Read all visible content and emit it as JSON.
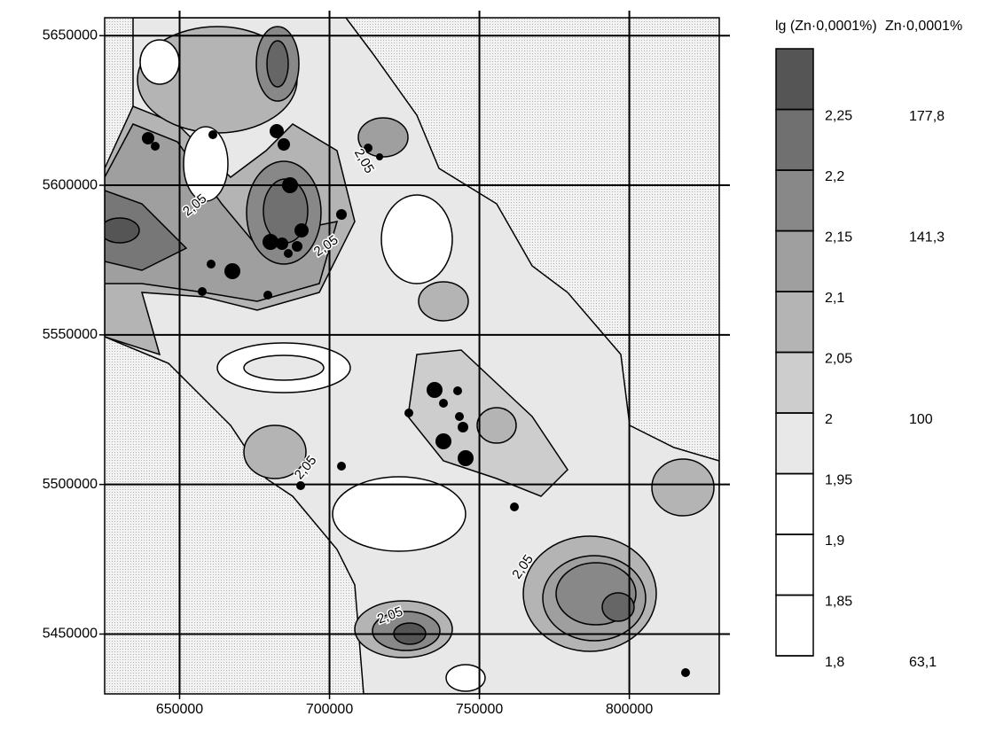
{
  "chart_data": {
    "type": "contour",
    "xlim": [
      625000,
      830000
    ],
    "ylim": [
      5430000,
      5656000
    ],
    "xticks": [
      650000,
      700000,
      750000,
      800000
    ],
    "yticks": [
      5450000,
      5500000,
      5550000,
      5600000,
      5650000
    ],
    "grid": true,
    "contour_labels": [
      "2,05",
      "2,05",
      "2,05",
      "2,05",
      "2,05",
      "2,05"
    ],
    "legend_title": "lg (Zn·0,0001%)",
    "colorbar_lim": [
      1.8,
      2.3
    ],
    "levels": [
      {
        "value": 1.8,
        "label": "1,8"
      },
      {
        "value": 1.85,
        "label": "1,85"
      },
      {
        "value": 1.9,
        "label": "1,9"
      },
      {
        "value": 1.95,
        "label": "1,95"
      },
      {
        "value": 2,
        "label": "2"
      },
      {
        "value": 2.05,
        "label": "2,05"
      },
      {
        "value": 2.1,
        "label": "2,1"
      },
      {
        "value": 2.15,
        "label": "2,15"
      },
      {
        "value": 2.2,
        "label": "2,2"
      },
      {
        "value": 2.25,
        "label": "2,25"
      }
    ],
    "colors": [
      "#ffffff",
      "#ffffff",
      "#ffffff",
      "#e8e8e8",
      "#cdcdcd",
      "#b4b4b4",
      "#9f9f9f",
      "#888888",
      "#707070",
      "#555555"
    ],
    "secondary_title": "Zn·0,0001%",
    "secondary_ticks": [
      {
        "value": 177.8,
        "label": "177,8"
      },
      {
        "value": 141.3,
        "label": "141,3"
      },
      {
        "value": 100,
        "label": "100"
      },
      {
        "value": 63.1,
        "label": "63,1"
      }
    ]
  }
}
